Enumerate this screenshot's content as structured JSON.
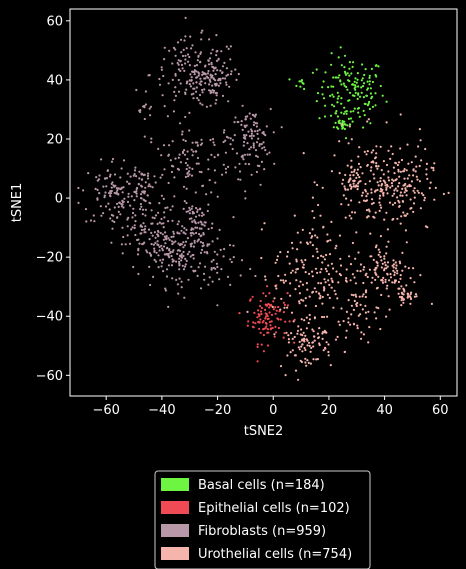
{
  "chart_data": {
    "type": "scatter",
    "title": "",
    "xlabel": "tSNE2",
    "ylabel": "tSNE1",
    "xlim": [
      -73,
      66
    ],
    "ylim": [
      -67,
      64
    ],
    "xticks": [
      -60,
      -40,
      -20,
      0,
      20,
      40,
      60
    ],
    "yticks": [
      -60,
      -40,
      -20,
      0,
      20,
      40,
      60
    ],
    "xtick_labels": [
      "−60",
      "−40",
      "−20",
      "0",
      "20",
      "40",
      "60"
    ],
    "ytick_labels": [
      "−60",
      "−40",
      "−20",
      "0",
      "20",
      "40",
      "60"
    ],
    "grid": false,
    "legend_position": "bottom-center",
    "background": "#000000",
    "axis_color": "#ffffff",
    "series": [
      {
        "name": "Basal cells (n=184)",
        "color": "#6ef542",
        "clusters": [
          {
            "cx": 28,
            "cy": 36,
            "sx": 6,
            "sy": 6,
            "n": 150
          },
          {
            "cx": 25,
            "cy": 25,
            "sx": 1.5,
            "sy": 1.2,
            "n": 24
          },
          {
            "cx": 10,
            "cy": 39,
            "sx": 1.2,
            "sy": 1.0,
            "n": 10
          }
        ]
      },
      {
        "name": "Epithelial cells (n=102)",
        "color": "#f04a54",
        "clusters": [
          {
            "cx": -2,
            "cy": -40,
            "sx": 3.5,
            "sy": 4.5,
            "n": 102
          }
        ]
      },
      {
        "name": "Fibroblasts (n=959)",
        "color": "#b897a8",
        "clusters": [
          {
            "cx": -28,
            "cy": 42,
            "sx": 8,
            "sy": 6,
            "n": 160
          },
          {
            "cx": -22,
            "cy": 40,
            "sx": 4,
            "sy": 3,
            "n": 70
          },
          {
            "cx": -8,
            "cy": 20,
            "sx": 3.5,
            "sy": 5,
            "n": 90
          },
          {
            "cx": -57,
            "cy": 2,
            "sx": 6,
            "sy": 6,
            "n": 100
          },
          {
            "cx": -47,
            "cy": 5,
            "sx": 2,
            "sy": 3,
            "n": 40
          },
          {
            "cx": -48,
            "cy": -10,
            "sx": 5,
            "sy": 6,
            "n": 90
          },
          {
            "cx": -35,
            "cy": -18,
            "sx": 6,
            "sy": 6,
            "n": 170
          },
          {
            "cx": -27,
            "cy": -10,
            "sx": 3,
            "sy": 4,
            "n": 60
          },
          {
            "cx": -28,
            "cy": 12,
            "sx": 9,
            "sy": 7,
            "n": 130
          },
          {
            "cx": -46,
            "cy": 30,
            "sx": 1.2,
            "sy": 1.2,
            "n": 9
          },
          {
            "cx": -20,
            "cy": -22,
            "sx": 5,
            "sy": 6,
            "n": 40
          }
        ]
      },
      {
        "name": "Urothelial cells (n=754)",
        "color": "#f5b5ad",
        "clusters": [
          {
            "cx": 38,
            "cy": 5,
            "sx": 9,
            "sy": 8,
            "n": 200
          },
          {
            "cx": 47,
            "cy": 3,
            "sx": 5,
            "sy": 6,
            "n": 70
          },
          {
            "cx": 28,
            "cy": 5,
            "sx": 1.8,
            "sy": 2.2,
            "n": 30
          },
          {
            "cx": 14,
            "cy": -25,
            "sx": 7,
            "sy": 9,
            "n": 160
          },
          {
            "cx": 40,
            "cy": -25,
            "sx": 6,
            "sy": 5,
            "n": 120
          },
          {
            "cx": 48,
            "cy": -33,
            "sx": 2,
            "sy": 1.5,
            "n": 30
          },
          {
            "cx": 12,
            "cy": -48,
            "sx": 5,
            "sy": 5,
            "n": 100
          },
          {
            "cx": 30,
            "cy": -40,
            "sx": 4,
            "sy": 4,
            "n": 44
          }
        ]
      }
    ]
  }
}
